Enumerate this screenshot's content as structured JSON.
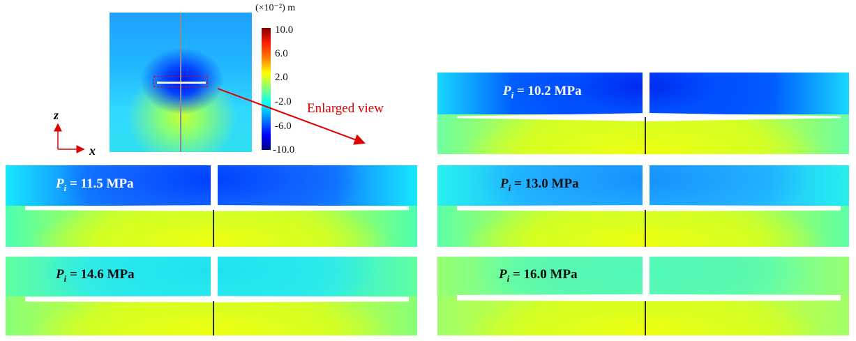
{
  "figure": {
    "colorbar": {
      "unit": "(×10⁻²) m",
      "ticks": [
        "10.0",
        "6.0",
        "2.0",
        "-2.0",
        "-6.0",
        "-10.0"
      ]
    },
    "axes": {
      "z": "z",
      "x": "x"
    },
    "annotation": "Enlarged view",
    "panels": [
      {
        "p": "P",
        "sub": "i",
        "rest": " = 10.2 MPa"
      },
      {
        "p": "P",
        "sub": "i",
        "rest": " = 11.5 MPa"
      },
      {
        "p": "P",
        "sub": "i",
        "rest": " = 13.0 MPa"
      },
      {
        "p": "P",
        "sub": "i",
        "rest": " = 14.6 MPa"
      },
      {
        "p": "P",
        "sub": "i",
        "rest": " = 16.0 MPa"
      }
    ],
    "colors": {
      "crack_arrow": "#e00000",
      "axis_arrow": "#e00000"
    }
  }
}
